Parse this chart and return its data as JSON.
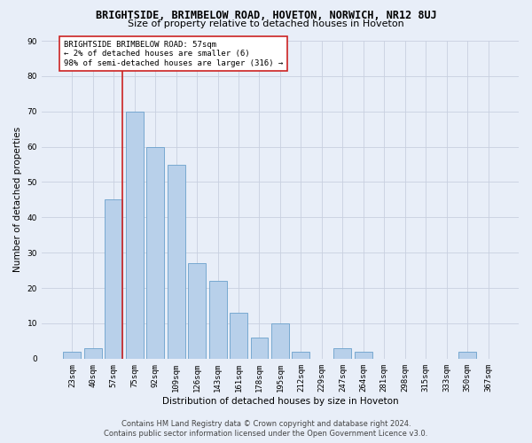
{
  "title": "BRIGHTSIDE, BRIMBELOW ROAD, HOVETON, NORWICH, NR12 8UJ",
  "subtitle": "Size of property relative to detached houses in Hoveton",
  "xlabel": "Distribution of detached houses by size in Hoveton",
  "ylabel": "Number of detached properties",
  "categories": [
    "23sqm",
    "40sqm",
    "57sqm",
    "75sqm",
    "92sqm",
    "109sqm",
    "126sqm",
    "143sqm",
    "161sqm",
    "178sqm",
    "195sqm",
    "212sqm",
    "229sqm",
    "247sqm",
    "264sqm",
    "281sqm",
    "298sqm",
    "315sqm",
    "333sqm",
    "350sqm",
    "367sqm"
  ],
  "values": [
    2,
    3,
    45,
    70,
    60,
    55,
    27,
    22,
    13,
    6,
    10,
    2,
    0,
    3,
    2,
    0,
    0,
    0,
    0,
    2,
    0
  ],
  "bar_color": "#b8d0ea",
  "bar_edge_color": "#6aa0cc",
  "highlight_index": 2,
  "highlight_line_color": "#cc2222",
  "ylim": [
    0,
    90
  ],
  "yticks": [
    0,
    10,
    20,
    30,
    40,
    50,
    60,
    70,
    80,
    90
  ],
  "annotation_lines": [
    "BRIGHTSIDE BRIMBELOW ROAD: 57sqm",
    "← 2% of detached houses are smaller (6)",
    "98% of semi-detached houses are larger (316) →"
  ],
  "annotation_box_color": "#ffffff",
  "annotation_box_edge": "#cc2222",
  "footer1": "Contains HM Land Registry data © Crown copyright and database right 2024.",
  "footer2": "Contains public sector information licensed under the Open Government Licence v3.0.",
  "background_color": "#e8eef8",
  "plot_bg_color": "#e8eef8",
  "grid_color": "#c8d0e0",
  "title_fontsize": 8.5,
  "subtitle_fontsize": 8,
  "axis_label_fontsize": 7.5,
  "tick_fontsize": 6.5,
  "footer_fontsize": 6
}
